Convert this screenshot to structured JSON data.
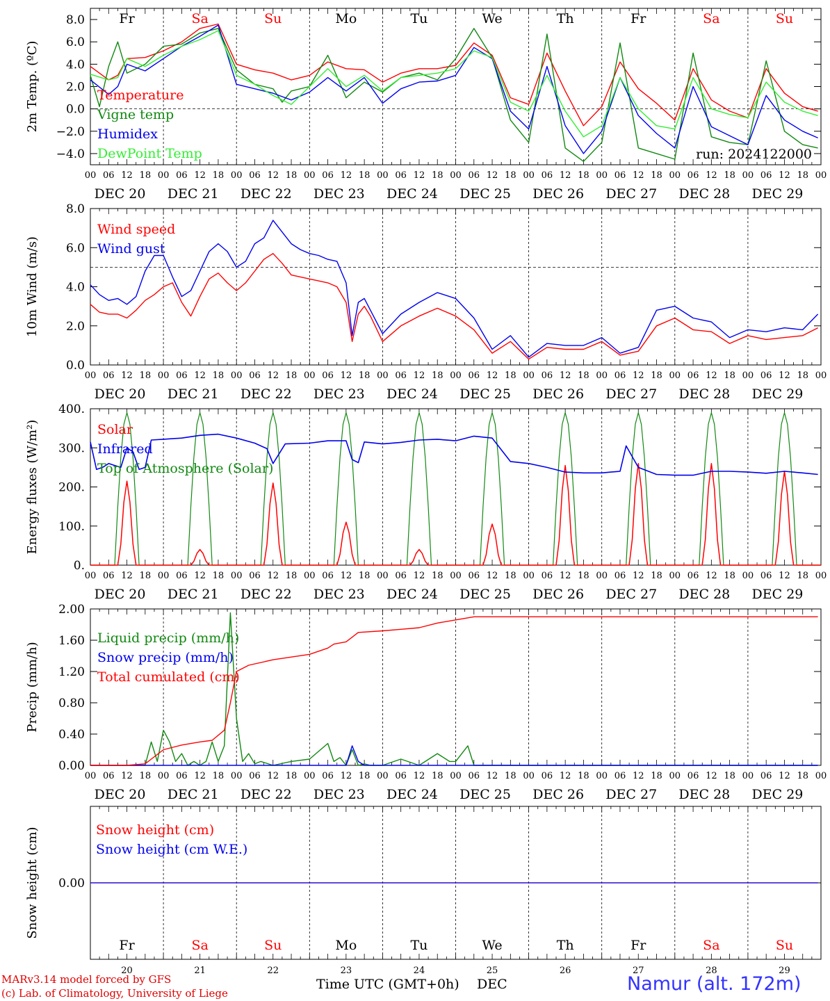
{
  "colors": {
    "red": "#ff0000",
    "green": "#118811",
    "blue": "#0000ee",
    "lightgreen": "#33ee33",
    "weekend": "#ff0000",
    "weekday": "#000000"
  },
  "days": [
    {
      "name": "Fr",
      "date": "DEC 20",
      "num": "20",
      "weekend": false
    },
    {
      "name": "Sa",
      "date": "DEC 21",
      "num": "21",
      "weekend": true
    },
    {
      "name": "Su",
      "date": "DEC 22",
      "num": "22",
      "weekend": true
    },
    {
      "name": "Mo",
      "date": "DEC 23",
      "num": "23",
      "weekend": false
    },
    {
      "name": "Tu",
      "date": "DEC 24",
      "num": "24",
      "weekend": false
    },
    {
      "name": "We",
      "date": "DEC 25",
      "num": "25",
      "weekend": false
    },
    {
      "name": "Th",
      "date": "DEC 26",
      "num": "26",
      "weekend": false
    },
    {
      "name": "Fr",
      "date": "DEC 27",
      "num": "27",
      "weekend": false
    },
    {
      "name": "Sa",
      "date": "DEC 28",
      "num": "28",
      "weekend": true
    },
    {
      "name": "Su",
      "date": "DEC 29",
      "num": "29",
      "weekend": true
    }
  ],
  "hour_labels": [
    "00",
    "06",
    "12",
    "18"
  ],
  "final_hour_label": "00",
  "footer": {
    "credit1": "MARv3.14 model forced by GFS",
    "credit2": "(c) Lab. of Climatology, University of Liege",
    "xlabel": "Time UTC (GMT+0h)",
    "xlabel_month": "DEC",
    "station": "Namur (alt. 172m)"
  },
  "chart_data": [
    {
      "type": "line",
      "ylabel": "2m Temp. (ºC)",
      "ylim": [
        -5,
        9
      ],
      "ticks": [
        8,
        6,
        4,
        2,
        0,
        -2,
        -4
      ],
      "tick_labels": [
        "8.0",
        "6.0",
        "4.0",
        "2.0",
        "0.0",
        "−2.0",
        "−4.0"
      ],
      "dashed_y": 0,
      "run": "run: 2024122000",
      "series": [
        {
          "name": "Temperature",
          "color": "red",
          "x": [
            0,
            6,
            9,
            12,
            18,
            24,
            30,
            36,
            42,
            48,
            54,
            60,
            66,
            72,
            78,
            84,
            90,
            96,
            102,
            108,
            114,
            120,
            126,
            132,
            138,
            144,
            150,
            156,
            162,
            168,
            174,
            180,
            186,
            192,
            198,
            204,
            210,
            216,
            222,
            228,
            234,
            239
          ],
          "values": [
            3.8,
            2.6,
            3.0,
            4.5,
            4.6,
            5.2,
            6.0,
            7.2,
            7.6,
            4.0,
            3.5,
            3.2,
            2.6,
            3.0,
            4.2,
            3.6,
            3.5,
            2.4,
            3.2,
            3.6,
            3.6,
            3.9,
            5.9,
            4.8,
            1.0,
            0.4,
            5.0,
            1.6,
            -1.5,
            0.2,
            4.2,
            1.8,
            0.5,
            -1.0,
            3.6,
            0.8,
            -0.2,
            -0.8,
            3.6,
            1.4,
            0.2,
            -0.2
          ]
        },
        {
          "name": "Vigne temp",
          "color": "green",
          "x": [
            0,
            3,
            6,
            9,
            12,
            18,
            24,
            30,
            36,
            42,
            48,
            54,
            60,
            63,
            66,
            72,
            78,
            84,
            90,
            96,
            102,
            108,
            114,
            120,
            126,
            132,
            138,
            144,
            150,
            156,
            162,
            168,
            174,
            180,
            186,
            192,
            198,
            204,
            210,
            216,
            222,
            228,
            234,
            239
          ],
          "values": [
            3.0,
            0.2,
            3.8,
            6.0,
            3.2,
            4.0,
            5.6,
            5.8,
            6.8,
            7.2,
            3.5,
            2.2,
            1.8,
            0.6,
            1.6,
            2.0,
            4.8,
            1.0,
            2.4,
            1.5,
            2.8,
            3.2,
            2.6,
            4.5,
            7.2,
            4.6,
            -1.0,
            -3.0,
            6.7,
            -3.5,
            -4.7,
            -3.0,
            5.9,
            -3.5,
            -4.0,
            -4.5,
            5.0,
            -2.5,
            -3.0,
            -3.2,
            4.3,
            -2.0,
            -3.2,
            -3.5
          ]
        },
        {
          "name": "Humidex",
          "color": "blue",
          "x": [
            0,
            6,
            9,
            12,
            18,
            24,
            30,
            36,
            42,
            48,
            54,
            60,
            66,
            72,
            78,
            84,
            90,
            96,
            102,
            108,
            114,
            120,
            126,
            132,
            138,
            144,
            150,
            156,
            162,
            168,
            174,
            180,
            186,
            192,
            198,
            204,
            210,
            216,
            222,
            228,
            234,
            239
          ],
          "values": [
            2.6,
            1.3,
            2.0,
            4.0,
            3.4,
            4.5,
            5.6,
            6.5,
            7.5,
            2.2,
            1.8,
            1.4,
            0.8,
            1.5,
            2.8,
            1.6,
            2.8,
            0.5,
            1.8,
            2.4,
            2.5,
            3.0,
            5.5,
            4.5,
            -0.2,
            -1.8,
            3.8,
            -1.5,
            -4.0,
            -2.0,
            2.8,
            -0.6,
            -2.2,
            -3.5,
            2.0,
            -1.6,
            -2.4,
            -3.2,
            1.2,
            -1.0,
            -2.0,
            -2.6
          ]
        },
        {
          "name": "DewPoint Temp",
          "color": "lightgreen",
          "x": [
            0,
            6,
            9,
            12,
            18,
            24,
            30,
            36,
            42,
            48,
            54,
            60,
            66,
            72,
            78,
            84,
            90,
            96,
            102,
            108,
            114,
            120,
            126,
            132,
            138,
            144,
            150,
            156,
            162,
            168,
            174,
            180,
            186,
            192,
            198,
            204,
            210,
            216,
            222,
            228,
            234,
            239
          ],
          "values": [
            3.1,
            2.6,
            2.8,
            4.5,
            3.8,
            4.8,
            5.6,
            6.2,
            7.0,
            3.0,
            2.2,
            1.2,
            0.4,
            2.0,
            3.6,
            2.0,
            3.0,
            1.6,
            2.8,
            3.0,
            3.2,
            3.6,
            5.2,
            4.6,
            0.6,
            -0.2,
            3.0,
            -0.2,
            -2.5,
            -1.5,
            2.8,
            0.0,
            -1.5,
            -1.8,
            2.8,
            0.0,
            -0.5,
            -0.8,
            2.4,
            0.6,
            -0.2,
            -0.6
          ]
        }
      ]
    },
    {
      "type": "line",
      "ylabel": "10m Wind (m/s)",
      "ylim": [
        0,
        8
      ],
      "ticks": [
        8,
        6,
        4,
        2,
        0
      ],
      "tick_labels": [
        "8.0",
        "6.0",
        "4.0",
        "2.0",
        "0.0"
      ],
      "dashed_y": 5,
      "series": [
        {
          "name": "Wind speed",
          "color": "red",
          "x": [
            0,
            3,
            6,
            9,
            12,
            15,
            18,
            21,
            24,
            27,
            30,
            33,
            36,
            39,
            42,
            45,
            48,
            51,
            54,
            57,
            60,
            63,
            66,
            69,
            72,
            75,
            78,
            81,
            84,
            86,
            88,
            90,
            92,
            96,
            102,
            108,
            114,
            120,
            126,
            132,
            138,
            144,
            150,
            156,
            162,
            168,
            174,
            180,
            186,
            192,
            198,
            204,
            210,
            216,
            222,
            228,
            234,
            239
          ],
          "values": [
            3.1,
            2.7,
            2.6,
            2.6,
            2.4,
            2.8,
            3.3,
            3.6,
            4.0,
            4.2,
            3.2,
            2.5,
            3.5,
            4.4,
            4.7,
            4.2,
            3.8,
            4.2,
            4.8,
            5.4,
            5.7,
            5.2,
            4.6,
            4.5,
            4.4,
            4.3,
            4.2,
            4.0,
            3.2,
            1.2,
            2.6,
            3.0,
            2.5,
            1.2,
            2.0,
            2.5,
            2.9,
            2.5,
            1.8,
            0.6,
            1.2,
            0.3,
            0.9,
            0.8,
            0.8,
            1.2,
            0.5,
            0.7,
            2.0,
            2.4,
            1.8,
            1.7,
            1.1,
            1.5,
            1.3,
            1.4,
            1.5,
            1.9
          ]
        },
        {
          "name": "Wind gust",
          "color": "blue",
          "x": [
            0,
            3,
            6,
            9,
            12,
            15,
            18,
            21,
            24,
            27,
            30,
            33,
            36,
            39,
            42,
            45,
            48,
            51,
            54,
            57,
            60,
            63,
            66,
            69,
            72,
            75,
            78,
            81,
            84,
            86,
            88,
            90,
            92,
            96,
            102,
            108,
            114,
            120,
            126,
            132,
            138,
            144,
            150,
            156,
            162,
            168,
            174,
            180,
            186,
            192,
            198,
            204,
            210,
            216,
            222,
            228,
            234,
            239
          ],
          "values": [
            4.1,
            3.6,
            3.3,
            3.4,
            3.1,
            3.5,
            4.8,
            5.6,
            5.6,
            4.5,
            3.5,
            3.8,
            4.8,
            5.8,
            6.2,
            5.8,
            5.0,
            5.3,
            6.2,
            6.5,
            7.4,
            6.8,
            6.2,
            5.9,
            5.7,
            5.6,
            5.4,
            5.3,
            4.2,
            1.5,
            3.2,
            3.4,
            2.8,
            1.6,
            2.6,
            3.2,
            3.7,
            3.4,
            2.4,
            0.8,
            1.5,
            0.4,
            1.1,
            1.0,
            1.0,
            1.4,
            0.6,
            0.9,
            2.8,
            3.0,
            2.4,
            2.2,
            1.4,
            1.8,
            1.7,
            1.9,
            1.8,
            2.6
          ]
        }
      ]
    },
    {
      "type": "line",
      "ylabel": "Energy fluxes (W/m²)",
      "ylim": [
        0,
        400
      ],
      "ticks": [
        400,
        300,
        200,
        100,
        0
      ],
      "tick_labels": [
        "400.",
        "300.",
        "200.",
        "100.",
        "0."
      ],
      "series": [
        {
          "name": "Solar",
          "color": "red",
          "peaks": [
            215,
            40,
            210,
            110,
            40,
            105,
            255,
            260,
            260,
            240
          ]
        },
        {
          "name": "Infrared",
          "color": "blue",
          "x": [
            0,
            2,
            4,
            6,
            8,
            10,
            12,
            14,
            16,
            18,
            20,
            24,
            30,
            36,
            42,
            48,
            54,
            58,
            60,
            64,
            72,
            78,
            84,
            86,
            88,
            90,
            96,
            102,
            108,
            114,
            120,
            126,
            132,
            138,
            144,
            150,
            156,
            162,
            168,
            171,
            174,
            176,
            180,
            186,
            192,
            198,
            204,
            210,
            216,
            222,
            228,
            234,
            239
          ],
          "values": [
            315,
            245,
            250,
            260,
            255,
            250,
            300,
            290,
            245,
            250,
            320,
            322,
            325,
            332,
            335,
            325,
            312,
            298,
            260,
            310,
            312,
            318,
            318,
            270,
            262,
            315,
            310,
            314,
            320,
            322,
            318,
            330,
            325,
            265,
            260,
            250,
            238,
            236,
            236,
            238,
            240,
            305,
            250,
            232,
            230,
            230,
            240,
            240,
            238,
            235,
            240,
            236,
            232
          ]
        },
        {
          "name": "Top of Atmosphere (Solar)",
          "color": "green",
          "peak": 390
        }
      ]
    },
    {
      "type": "line",
      "ylabel": "Precip (mm/h)",
      "ylim": [
        0,
        2
      ],
      "ticks": [
        2.0,
        1.6,
        1.2,
        0.8,
        0.4,
        0.0
      ],
      "tick_labels": [
        "2.00",
        "1.60",
        "1.20",
        "0.80",
        "0.40",
        "0.00"
      ],
      "series": [
        {
          "name": "Liquid precip (mm/h)",
          "color": "green",
          "x": [
            0,
            6,
            12,
            18,
            20,
            22,
            24,
            26,
            28,
            30,
            32,
            34,
            36,
            38,
            40,
            42,
            44,
            46,
            48,
            50,
            52,
            54,
            56,
            60,
            66,
            72,
            78,
            80,
            82,
            84,
            86,
            88,
            90,
            92,
            96,
            102,
            108,
            114,
            118,
            120,
            124,
            126,
            130,
            132,
            239
          ],
          "values": [
            0.0,
            0.0,
            0.0,
            0.0,
            0.3,
            0.05,
            0.45,
            0.3,
            0.05,
            0.15,
            0.0,
            0.05,
            0.0,
            0.05,
            0.3,
            0.05,
            0.25,
            1.95,
            0.6,
            0.05,
            0.15,
            0.02,
            0.05,
            0.0,
            0.05,
            0.08,
            0.28,
            0.05,
            0.1,
            0.0,
            0.2,
            0.0,
            0.02,
            0.0,
            0.0,
            0.08,
            0.0,
            0.15,
            0.05,
            0.05,
            0.25,
            0.0,
            0.0,
            0.0,
            0.0
          ]
        },
        {
          "name": "Snow precip (mm/h)",
          "color": "blue",
          "x": [
            0,
            6,
            84,
            86,
            88,
            90,
            92,
            239
          ],
          "values": [
            0.0,
            0.0,
            0.0,
            0.25,
            0.05,
            0.0,
            0.0,
            0.0
          ]
        },
        {
          "name": "Total cumulated (cm)",
          "color": "red",
          "x": [
            0,
            6,
            12,
            18,
            20,
            24,
            30,
            36,
            40,
            44,
            46,
            48,
            52,
            60,
            72,
            78,
            80,
            84,
            88,
            96,
            102,
            108,
            114,
            120,
            126,
            132,
            144,
            168,
            192,
            216,
            239
          ],
          "values": [
            0.0,
            0.0,
            0.0,
            0.02,
            0.08,
            0.2,
            0.26,
            0.3,
            0.32,
            0.45,
            0.8,
            1.2,
            1.28,
            1.35,
            1.42,
            1.5,
            1.55,
            1.58,
            1.7,
            1.72,
            1.74,
            1.76,
            1.82,
            1.86,
            1.9,
            1.9,
            1.9,
            1.9,
            1.9,
            1.9,
            1.9
          ]
        }
      ]
    },
    {
      "type": "line",
      "ylabel": "Snow height (cm)",
      "ylim": [
        -1,
        1
      ],
      "ticks": [
        0
      ],
      "tick_labels": [
        "0.00"
      ],
      "series": [
        {
          "name": "Snow height (cm)",
          "color": "red",
          "x": [
            0,
            239
          ],
          "values": [
            0,
            0
          ]
        },
        {
          "name": "Snow height (cm W.E.)",
          "color": "blue",
          "x": [
            0,
            239
          ],
          "values": [
            0,
            0
          ]
        }
      ]
    }
  ]
}
